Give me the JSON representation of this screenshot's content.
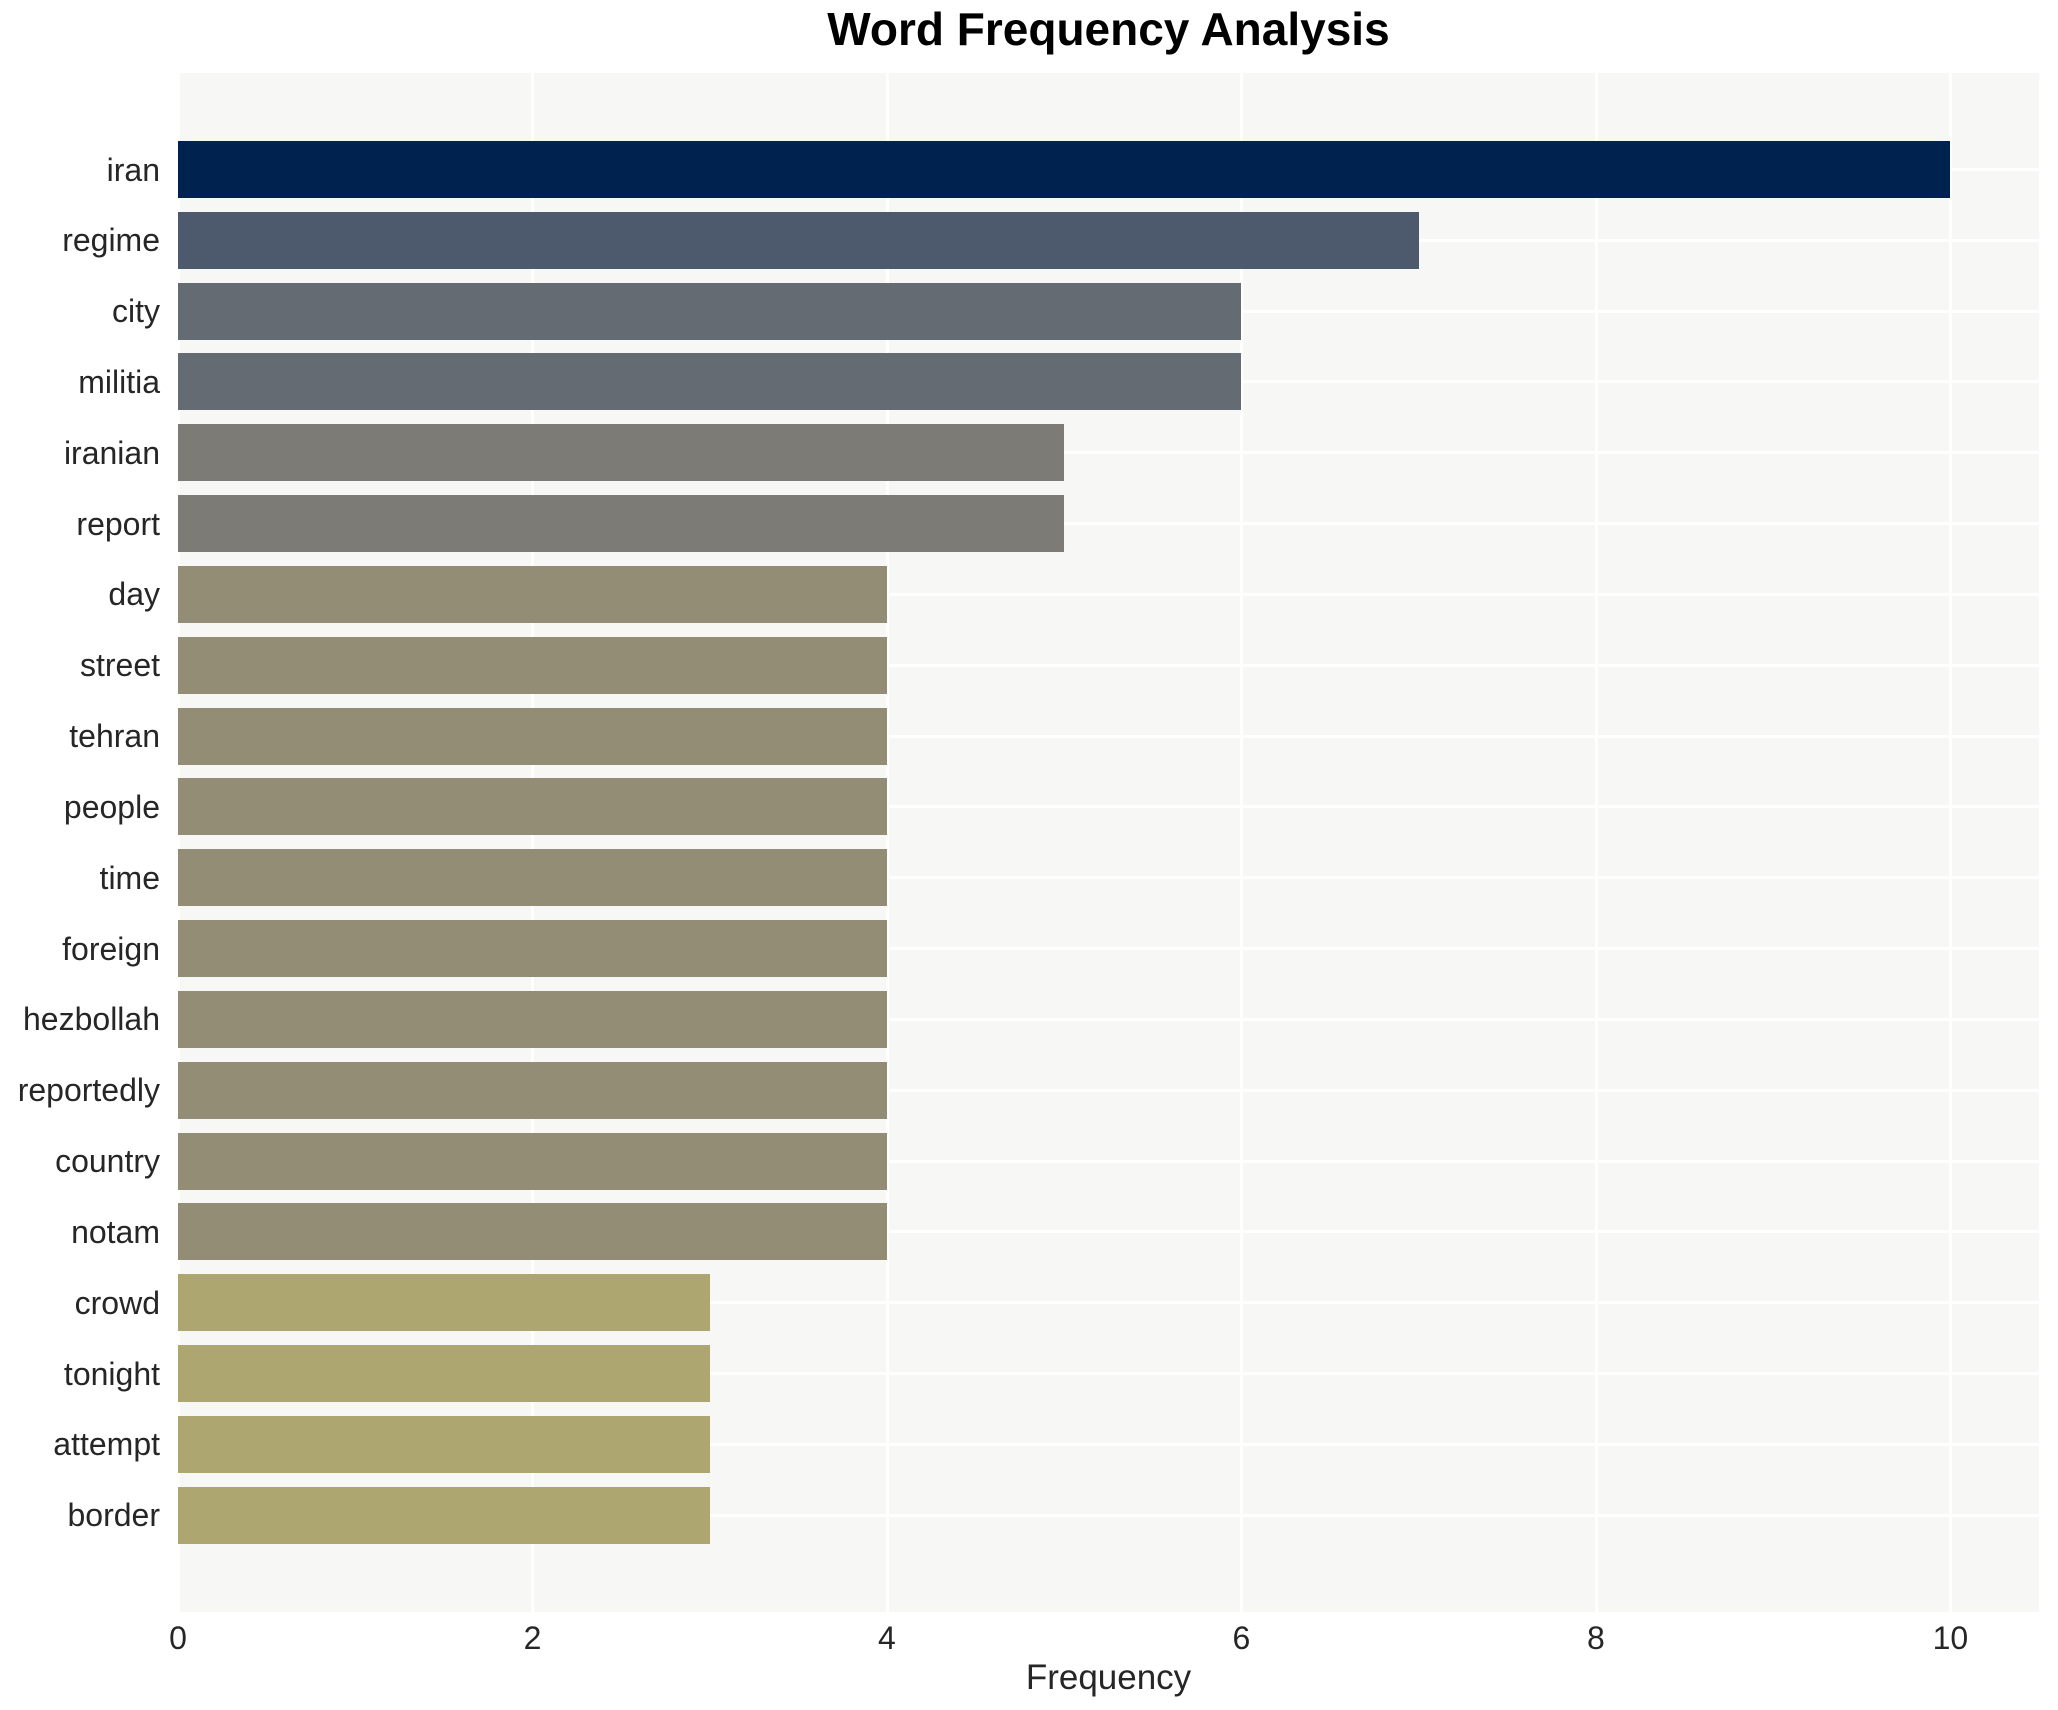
{
  "title": "Word Frequency Analysis",
  "chart_data": {
    "type": "bar",
    "orientation": "horizontal",
    "title": "Word Frequency Analysis",
    "xlabel": "Frequency",
    "ylabel": "",
    "categories": [
      "iran",
      "regime",
      "city",
      "militia",
      "iranian",
      "report",
      "day",
      "street",
      "tehran",
      "people",
      "time",
      "foreign",
      "hezbollah",
      "reportedly",
      "country",
      "notam",
      "crowd",
      "tonight",
      "attempt",
      "border"
    ],
    "values": [
      10,
      7,
      6,
      6,
      5,
      5,
      4,
      4,
      4,
      4,
      4,
      4,
      4,
      4,
      4,
      4,
      3,
      3,
      3,
      3
    ],
    "bar_colors": [
      "#00224e",
      "#4d5a6e",
      "#656b72",
      "#656b72",
      "#7c7b75",
      "#7c7b75",
      "#948d76",
      "#948d76",
      "#948d76",
      "#948d76",
      "#948d76",
      "#948d76",
      "#948d76",
      "#948d76",
      "#948d76",
      "#948d76",
      "#aea671",
      "#aea671",
      "#aea671",
      "#aea671"
    ],
    "xticks": [
      0,
      2,
      4,
      6,
      8,
      10
    ],
    "xlim": [
      0,
      10.5
    ],
    "grid": true,
    "legend_position": "none",
    "plot_background": "#f7f7f5",
    "grid_color": "#ffffff",
    "text_color": "#262626",
    "title_color": "#000000"
  }
}
